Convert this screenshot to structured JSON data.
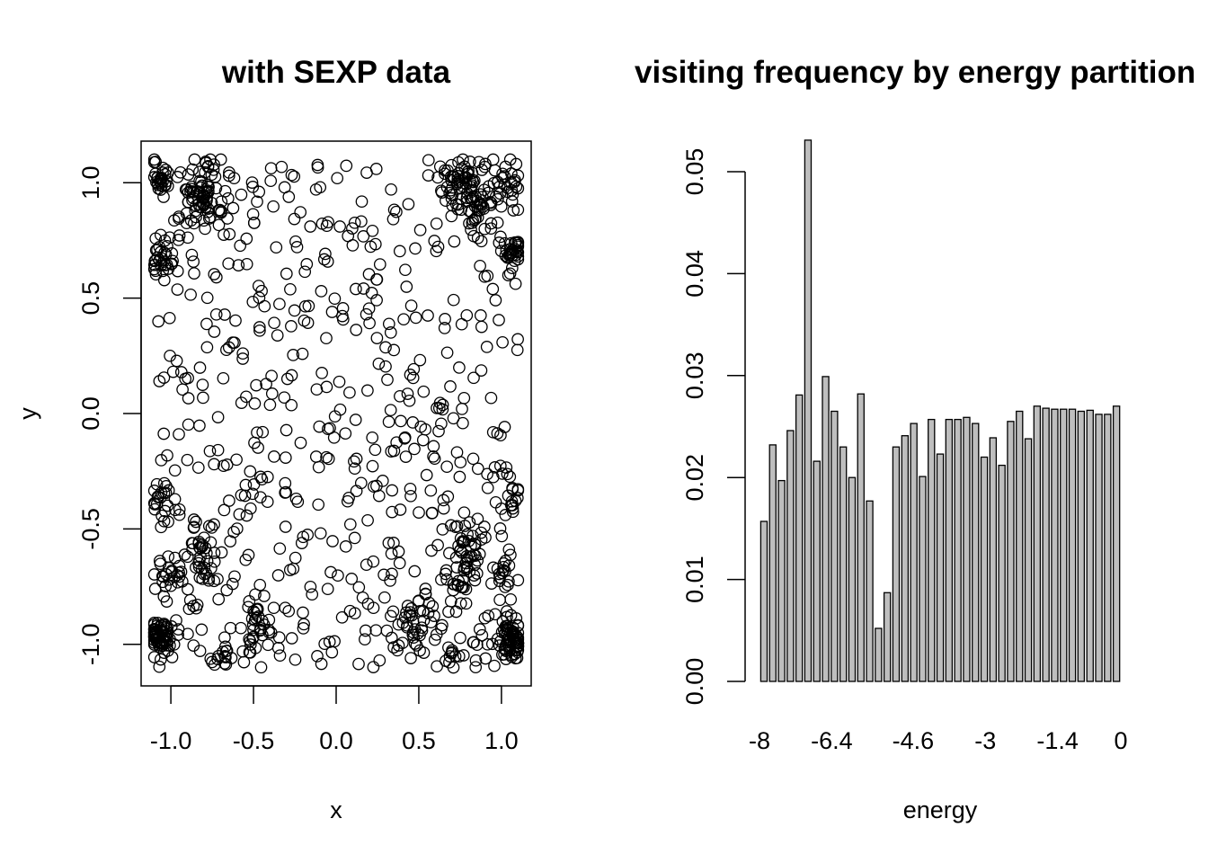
{
  "chart_data": [
    {
      "type": "scatter",
      "title": "with SEXP data",
      "xlabel": "x",
      "ylabel": "y",
      "xlim": [
        -1.18,
        1.18
      ],
      "ylim": [
        -1.18,
        1.18
      ],
      "x_ticks": [
        "-1.0",
        "-0.5",
        "0.0",
        "0.5",
        "1.0"
      ],
      "y_ticks": [
        "-1.0",
        "-0.5",
        "0.0",
        "0.5",
        "1.0"
      ],
      "marker": "open-circle",
      "box": true,
      "grid": false,
      "clusters": [
        {
          "x": -1.05,
          "y": 1.02,
          "n": 30,
          "spread": 0.04
        },
        {
          "x": -0.82,
          "y": 0.95,
          "n": 70,
          "spread": 0.07
        },
        {
          "x": -1.05,
          "y": 0.66,
          "n": 30,
          "spread": 0.05
        },
        {
          "x": 0.75,
          "y": 1.0,
          "n": 45,
          "spread": 0.06
        },
        {
          "x": 0.85,
          "y": 0.92,
          "n": 40,
          "spread": 0.05
        },
        {
          "x": 1.04,
          "y": 1.0,
          "n": 25,
          "spread": 0.05
        },
        {
          "x": 1.07,
          "y": 0.69,
          "n": 35,
          "spread": 0.04
        },
        {
          "x": -1.03,
          "y": -0.36,
          "n": 18,
          "spread": 0.05
        },
        {
          "x": -0.55,
          "y": -0.37,
          "n": 8,
          "spread": 0.05
        },
        {
          "x": 1.05,
          "y": -0.36,
          "n": 15,
          "spread": 0.05
        },
        {
          "x": -0.8,
          "y": -0.62,
          "n": 40,
          "spread": 0.08
        },
        {
          "x": -1.02,
          "y": -0.72,
          "n": 20,
          "spread": 0.05
        },
        {
          "x": 0.8,
          "y": -0.58,
          "n": 30,
          "spread": 0.06
        },
        {
          "x": 0.75,
          "y": -0.72,
          "n": 25,
          "spread": 0.05
        },
        {
          "x": 1.02,
          "y": -0.7,
          "n": 15,
          "spread": 0.04
        },
        {
          "x": -1.07,
          "y": -0.97,
          "n": 70,
          "spread": 0.04
        },
        {
          "x": -0.7,
          "y": -1.05,
          "n": 12,
          "spread": 0.04
        },
        {
          "x": -0.48,
          "y": -0.92,
          "n": 30,
          "spread": 0.06
        },
        {
          "x": 0.48,
          "y": -0.92,
          "n": 35,
          "spread": 0.07
        },
        {
          "x": 0.72,
          "y": -1.03,
          "n": 10,
          "spread": 0.04
        },
        {
          "x": 1.07,
          "y": -0.97,
          "n": 70,
          "spread": 0.04
        }
      ],
      "uniform_points": 560,
      "x_range": [
        -1.1,
        1.1
      ],
      "y_range": [
        -1.1,
        1.1
      ]
    },
    {
      "type": "bar",
      "title": "visiting frequency by energy partition",
      "xlabel": "energy",
      "ylabel": "",
      "ylim": [
        0,
        0.053
      ],
      "x_tick_labels": [
        "-8",
        "-6.4",
        "-4.6",
        "-3",
        "-1.4",
        "0"
      ],
      "y_tick_labels": [
        "0.00",
        "0.01",
        "0.02",
        "0.03",
        "0.04",
        "0.05"
      ],
      "y_tick_values": [
        0,
        0.01,
        0.02,
        0.03,
        0.04,
        0.05
      ],
      "bar_color": "#bebebe",
      "values": [
        0.0157,
        0.0232,
        0.0197,
        0.0246,
        0.0281,
        0.0531,
        0.0216,
        0.0299,
        0.0265,
        0.023,
        0.02,
        0.0282,
        0.0177,
        0.0052,
        0.0087,
        0.023,
        0.0241,
        0.0253,
        0.0201,
        0.0257,
        0.0223,
        0.0257,
        0.0257,
        0.0259,
        0.0253,
        0.022,
        0.0239,
        0.0212,
        0.0255,
        0.0265,
        0.0238,
        0.027,
        0.0268,
        0.0267,
        0.0267,
        0.0267,
        0.0265,
        0.0266,
        0.0262,
        0.0262,
        0.027
      ]
    }
  ]
}
